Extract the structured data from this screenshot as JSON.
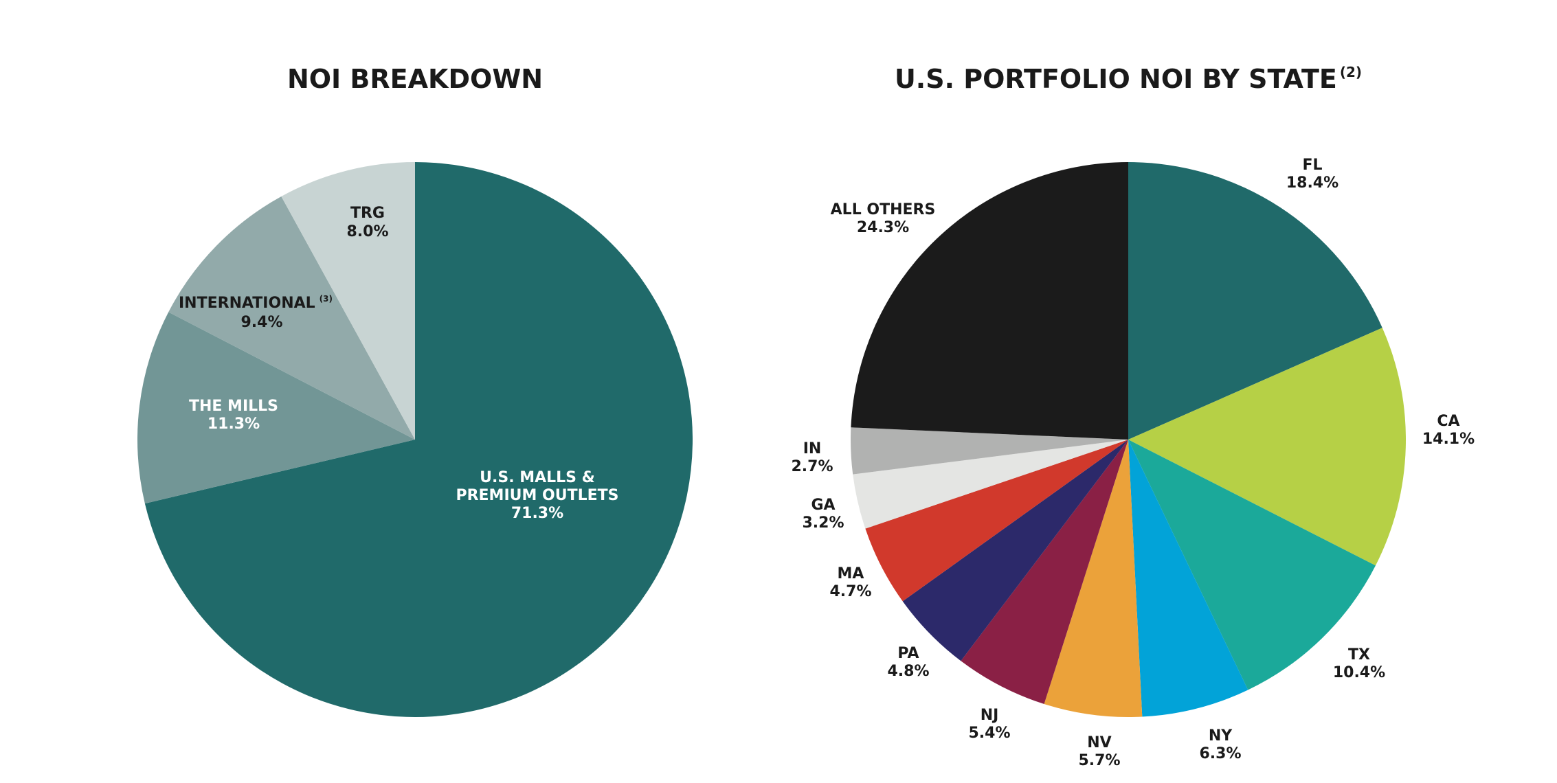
{
  "chart_data": [
    {
      "type": "pie",
      "title": "NOI BREAKDOWN",
      "slices": [
        {
          "label": "U.S. MALLS &",
          "label2": "PREMIUM OUTLETS",
          "value_text": "71.3%",
          "value": 71.3,
          "color": "#206a6a",
          "text_color": "#ffffff"
        },
        {
          "label": "THE MILLS",
          "value_text": "11.3%",
          "value": 11.3,
          "color": "#729696",
          "text_color": "#ffffff"
        },
        {
          "label": "INTERNATIONAL",
          "footnote": "(3)",
          "value_text": "9.4%",
          "value": 9.4,
          "color": "#92aaaa",
          "text_color": "#1a1a1a"
        },
        {
          "label": "TRG",
          "value_text": "8.0%",
          "value": 8.0,
          "color": "#c8d4d3",
          "text_color": "#1a1a1a"
        }
      ]
    },
    {
      "type": "pie",
      "title": "U.S. PORTFOLIO NOI BY STATE",
      "title_footnote": "(2)",
      "slices": [
        {
          "label": "FL",
          "value_text": "18.4%",
          "value": 18.4,
          "color": "#206a6a"
        },
        {
          "label": "CA",
          "value_text": "14.1%",
          "value": 14.1,
          "color": "#b6d046"
        },
        {
          "label": "TX",
          "value_text": "10.4%",
          "value": 10.4,
          "color": "#1ba99a"
        },
        {
          "label": "NY",
          "value_text": "6.3%",
          "value": 6.3,
          "color": "#02a3d8"
        },
        {
          "label": "NV",
          "value_text": "5.7%",
          "value": 5.7,
          "color": "#eba23a"
        },
        {
          "label": "NJ",
          "value_text": "5.4%",
          "value": 5.4,
          "color": "#8a2045"
        },
        {
          "label": "PA",
          "value_text": "4.8%",
          "value": 4.8,
          "color": "#2c296a"
        },
        {
          "label": "MA",
          "value_text": "4.7%",
          "value": 4.7,
          "color": "#d1392c"
        },
        {
          "label": "GA",
          "value_text": "3.2%",
          "value": 3.2,
          "color": "#e4e5e3"
        },
        {
          "label": "IN",
          "value_text": "2.7%",
          "value": 2.7,
          "color": "#b1b2b1"
        },
        {
          "label": "ALL OTHERS",
          "value_text": "24.3%",
          "value": 24.3,
          "color": "#1b1b1b"
        }
      ]
    }
  ]
}
